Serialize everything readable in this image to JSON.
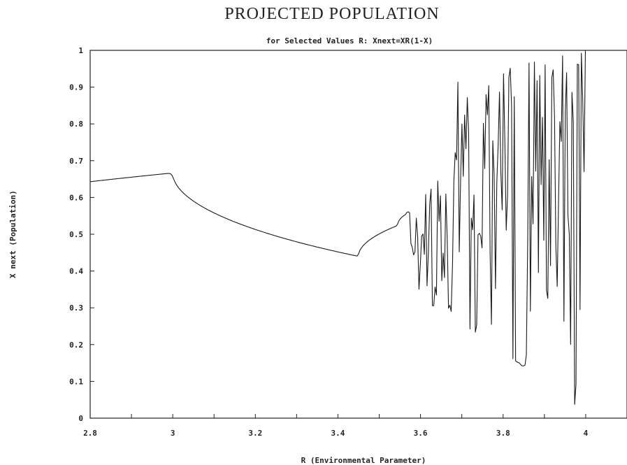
{
  "chart_data": {
    "type": "line",
    "title": "PROJECTED POPULATION",
    "subtitle": "for Selected Values R: Xnext=XR(1-X)",
    "xlabel": "R (Environmental Parameter)",
    "ylabel": "X next (Population)",
    "xlim": [
      2.8,
      4.1
    ],
    "ylim": [
      0,
      1
    ],
    "x_ticks": [
      "2.8",
      "3",
      "3.2",
      "3.4",
      "3.6",
      "3.8",
      "4"
    ],
    "y_ticks": [
      "0",
      "0.1",
      "0.2",
      "0.3",
      "0.4",
      "0.5",
      "0.6",
      "0.7",
      "0.8",
      "0.9",
      "1"
    ],
    "grid": false,
    "legend": "none",
    "series": [
      {
        "model": "logistic map",
        "formula": "Xnext=XR(1-X)",
        "r_start": 2.8,
        "r_end": 4.1,
        "points": 400,
        "x0": 0.5,
        "transient_iterations": 500,
        "color": "#1a1a1a"
      }
    ]
  }
}
